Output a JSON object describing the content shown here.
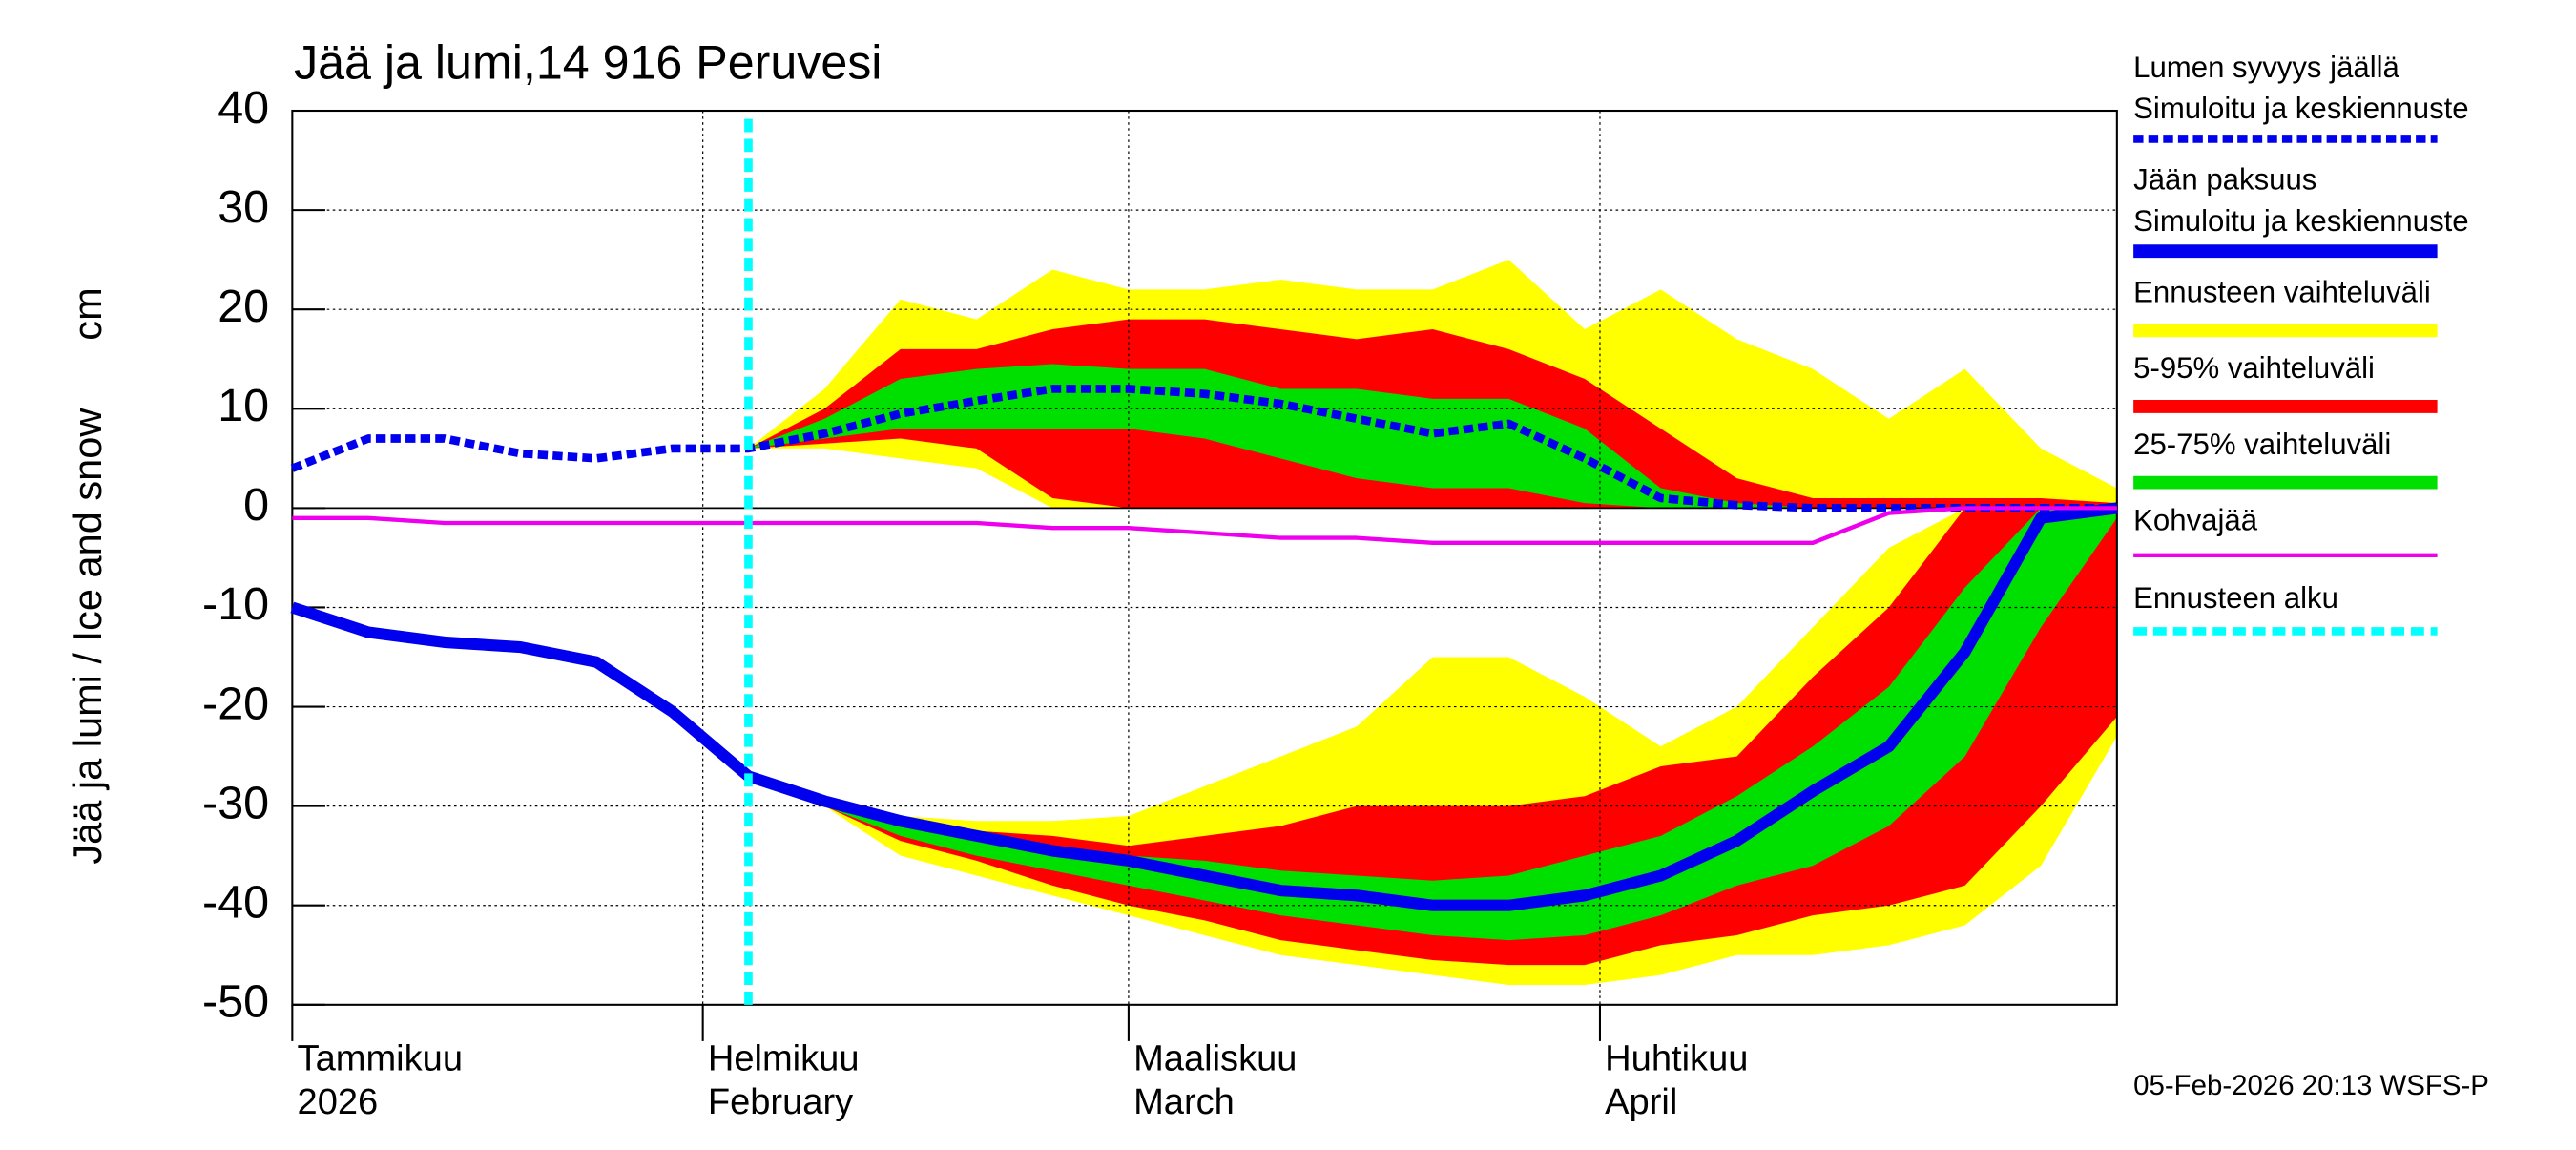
{
  "chart_data": {
    "type": "band-line",
    "title": "Jää ja lumi,14 916 Peruvesi",
    "ylabel": "Jää ja lumi / Ice and snow",
    "yunit": "cm",
    "timestamp": "05-Feb-2026 20:13 WSFS-P",
    "x": [
      5,
      10,
      15,
      20,
      25,
      30,
      35,
      40,
      45,
      50,
      55,
      60,
      65,
      70,
      75,
      80,
      85,
      90,
      95,
      100,
      105,
      110,
      115,
      120,
      125
    ],
    "xlim": [
      5,
      125
    ],
    "xticks": [
      {
        "value": 5,
        "label": "Tammikuu"
      },
      {
        "value": 32,
        "label": "Helmikuu"
      },
      {
        "value": 60,
        "label": "Maaliskuu"
      },
      {
        "value": 91,
        "label": "Huhtikuu"
      }
    ],
    "xtick_sublabels": [
      "2026",
      "February",
      "March",
      "April"
    ],
    "ylim": [
      -50,
      40
    ],
    "yticks": [
      -50,
      -40,
      -30,
      -20,
      -10,
      0,
      10,
      20,
      30,
      40
    ],
    "grid": true,
    "bands": [
      {
        "name": "Ennusteen vaihteluväli",
        "color": "#ffff00",
        "snow_upper": [
          null,
          null,
          null,
          null,
          null,
          null,
          6,
          12,
          21,
          19,
          24,
          22,
          22,
          23,
          22,
          22,
          25,
          18,
          22,
          17,
          14,
          9,
          14,
          6,
          2
        ],
        "snow_lower": [
          null,
          null,
          null,
          null,
          null,
          null,
          6,
          6,
          5,
          4,
          0,
          0,
          0,
          0,
          0,
          0,
          0,
          0,
          0,
          0,
          0,
          0,
          0,
          0,
          0
        ],
        "ice_upper": [
          null,
          null,
          null,
          null,
          null,
          null,
          -27,
          -29,
          -31,
          -31.5,
          -31.5,
          -31,
          -28,
          -25,
          -22,
          -15,
          -15,
          -19,
          -24,
          -20,
          -12,
          -4,
          0,
          0,
          0
        ],
        "ice_lower": [
          null,
          null,
          null,
          null,
          null,
          null,
          -27,
          -30,
          -35,
          -37,
          -39,
          -41,
          -43,
          -45,
          -46,
          -47,
          -48,
          -48,
          -47,
          -45,
          -45,
          -44,
          -42,
          -36,
          -23
        ]
      },
      {
        "name": "5-95% vaihteluväli",
        "color": "#ff0000",
        "snow_upper": [
          null,
          null,
          null,
          null,
          null,
          null,
          6,
          10,
          16,
          16,
          18,
          19,
          19,
          18,
          17,
          18,
          16,
          13,
          8,
          3,
          1,
          1,
          1,
          1,
          0.5
        ],
        "snow_lower": [
          null,
          null,
          null,
          null,
          null,
          null,
          6,
          6.5,
          7,
          6,
          1,
          0,
          0,
          0,
          0,
          0,
          0,
          0,
          0,
          0,
          0,
          0,
          0,
          0,
          0
        ],
        "ice_upper": [
          null,
          null,
          null,
          null,
          null,
          null,
          -27,
          -29.5,
          -32,
          -32.5,
          -33,
          -34,
          -33,
          -32,
          -30,
          -30,
          -30,
          -29,
          -26,
          -25,
          -17,
          -10,
          0,
          0,
          0
        ],
        "ice_lower": [
          null,
          null,
          null,
          null,
          null,
          null,
          -27,
          -30,
          -33.5,
          -35.5,
          -38,
          -40,
          -41.5,
          -43.5,
          -44.5,
          -45.5,
          -46,
          -46,
          -44,
          -43,
          -41,
          -40,
          -38,
          -30,
          -21
        ]
      },
      {
        "name": "25-75% vaihteluväli",
        "color": "#00e000",
        "snow_upper": [
          null,
          null,
          null,
          null,
          null,
          null,
          6,
          9,
          13,
          14,
          14.5,
          14,
          14,
          12,
          12,
          11,
          11,
          8,
          2,
          0.5,
          0,
          0,
          0,
          0,
          0
        ],
        "snow_lower": [
          null,
          null,
          null,
          null,
          null,
          null,
          6,
          7,
          8,
          8,
          8,
          8,
          7,
          5,
          3,
          2,
          2,
          0.5,
          0,
          0,
          0,
          0,
          0,
          0,
          0
        ],
        "ice_upper": [
          null,
          null,
          null,
          null,
          null,
          null,
          -27,
          -29.5,
          -32,
          -33.5,
          -34.5,
          -35,
          -35.5,
          -36.5,
          -37,
          -37.5,
          -37,
          -35,
          -33,
          -29,
          -24,
          -18,
          -8,
          0,
          0
        ],
        "ice_lower": [
          null,
          null,
          null,
          null,
          null,
          null,
          -27,
          -30,
          -33,
          -35,
          -36.5,
          -38,
          -39.5,
          -41,
          -42,
          -43,
          -43.5,
          -43,
          -41,
          -38,
          -36,
          -32,
          -25,
          -12,
          -1
        ]
      }
    ],
    "series": [
      {
        "name": "Lumen syvyys jäällä",
        "subname": "Simuloitu ja keskiennuste",
        "color": "#0000ee",
        "dashed": true,
        "values": [
          4,
          7,
          7,
          5.5,
          5,
          6,
          6,
          7.5,
          9.5,
          10.8,
          12,
          12,
          11.5,
          10.5,
          9,
          7.5,
          8.5,
          5,
          1,
          0.3,
          0,
          0,
          0,
          0,
          0
        ]
      },
      {
        "name": "Jään paksuus",
        "subname": "Simuloitu ja keskiennuste",
        "color": "#0000ee",
        "dashed": false,
        "values": [
          -10,
          -12.5,
          -13.5,
          -14,
          -15.5,
          -20.5,
          -27,
          -29.5,
          -31.5,
          -33,
          -34.5,
          -35.5,
          -37,
          -38.5,
          -39,
          -40,
          -40,
          -39,
          -37,
          -33.5,
          -28.5,
          -24,
          -14.5,
          -1,
          0
        ]
      },
      {
        "name": "Kohvajää",
        "color": "#ee00ee",
        "dashed": false,
        "values": [
          -1,
          -1,
          -1.5,
          -1.5,
          -1.5,
          -1.5,
          -1.5,
          -1.5,
          -1.5,
          -1.5,
          -2,
          -2,
          -2.5,
          -3,
          -3,
          -3.5,
          -3.5,
          -3.5,
          -3.5,
          -3.5,
          -3.5,
          -0.5,
          0,
          0,
          0
        ]
      }
    ],
    "forecast_start": {
      "name": "Ennusteen alku",
      "x": 35,
      "color": "#00ffff"
    }
  }
}
